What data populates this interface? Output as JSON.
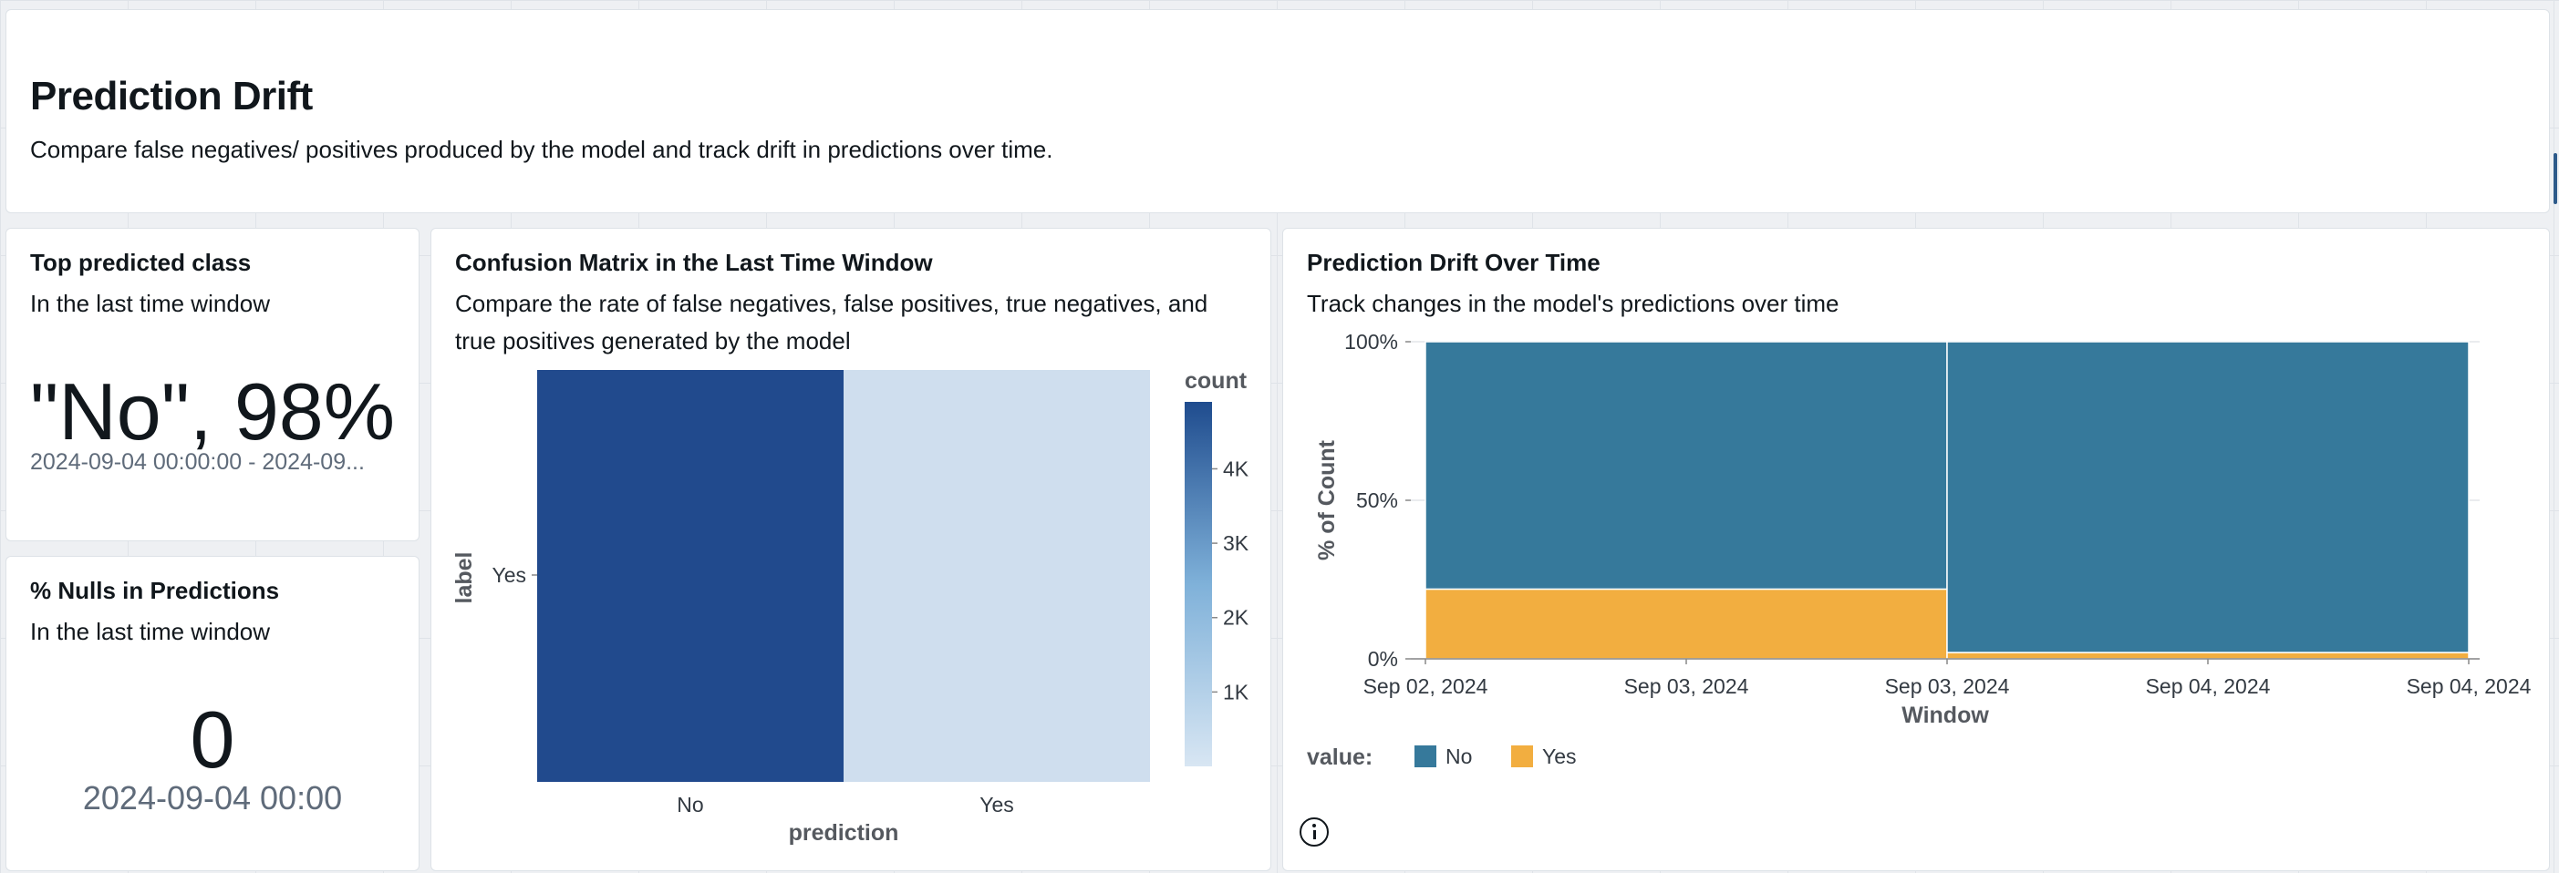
{
  "header": {
    "title": "Prediction Drift",
    "description": "Compare false negatives/ positives produced by the model and track drift in predictions over time."
  },
  "top_class": {
    "title": "Top predicted class",
    "subtitle": "In the last time window",
    "value": "\"No\", 98%",
    "range": "2024-09-04 00:00:00 - 2024-09..."
  },
  "nulls": {
    "title": "% Nulls in Predictions",
    "subtitle": "In the last time window",
    "value": "0",
    "time": "2024-09-04 00:00"
  },
  "confusion": {
    "title": "Confusion Matrix in the Last Time Window",
    "description": "Compare the rate of false negatives, false positives, true negatives, and true positives generated by the model"
  },
  "drift": {
    "title": "Prediction Drift Over Time",
    "description": "Track changes in the model's predictions over time"
  },
  "colors": {
    "no": "#36799b",
    "yes": "#f2ae40",
    "cm_high": "#214a8d",
    "cm_low": "#d3e1f0"
  },
  "chart_data": [
    {
      "type": "heatmap",
      "title": "",
      "xlabel": "prediction",
      "ylabel": "label",
      "x_categories": [
        "No",
        "Yes"
      ],
      "y_categories": [
        "Yes"
      ],
      "cells": [
        {
          "prediction": "No",
          "label": "Yes",
          "count": 4900
        },
        {
          "prediction": "Yes",
          "label": "Yes",
          "count": 100
        }
      ],
      "legend_title": "count",
      "legend_ticks": [
        4000,
        3000,
        2000,
        1000
      ],
      "legend_tick_labels": [
        "4K",
        "3K",
        "2K",
        "1K"
      ],
      "color_range": [
        0,
        4900
      ]
    },
    {
      "type": "bar",
      "stacked": "normalized",
      "title": "",
      "xlabel": "Window",
      "ylabel": "% of Count",
      "x_ticks": [
        "Sep 02, 2024",
        "Sep 03, 2024",
        "Sep 03, 2024",
        "Sep 04, 2024",
        "Sep 04, 2024"
      ],
      "y_ticks": [
        "0%",
        "50%",
        "100%"
      ],
      "ylim": [
        0,
        1
      ],
      "windows": [
        "Sep 02, 2024 – Sep 03, 2024",
        "Sep 03, 2024 – Sep 04, 2024"
      ],
      "series": [
        {
          "name": "No",
          "values": [
            0.78,
            0.98
          ]
        },
        {
          "name": "Yes",
          "values": [
            0.22,
            0.02
          ]
        }
      ],
      "legend_title": "value:",
      "legend_position": "bottom-left"
    }
  ]
}
